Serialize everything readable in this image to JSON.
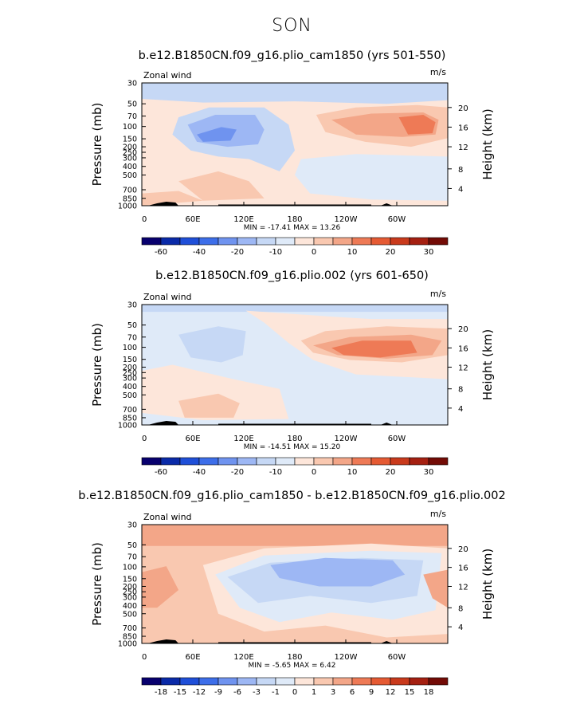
{
  "figure": {
    "title": "SON"
  },
  "chart_data": [
    {
      "type": "heatmap",
      "title": "b.e12.B1850CN.f09_g16.plio_cam1850 (yrs 501-550)",
      "variable_label": "Zonal wind",
      "units_label": "m/s",
      "ylabel": "Pressure (mb)",
      "ylabel_right": "Height (km)",
      "x_ticks": [
        "0",
        "60E",
        "120E",
        "180",
        "120W",
        "60W"
      ],
      "y_ticks": [
        "30",
        "50",
        "70",
        "100",
        "150",
        "200",
        "250",
        "300",
        "400",
        "500",
        "700",
        "850",
        "1000"
      ],
      "height_ticks": [
        "20",
        "16",
        "12",
        "8",
        "4"
      ],
      "min_max": "MIN = -17.41  MAX =  13.26",
      "colorbar_labels": [
        "-60",
        "-40",
        "-20",
        "-10",
        "0",
        "10",
        "20",
        "30"
      ],
      "min_value": -17.41,
      "max_value": 13.26
    },
    {
      "type": "heatmap",
      "title": "b.e12.B1850CN.f09_g16.plio.002 (yrs 601-650)",
      "variable_label": "Zonal wind",
      "units_label": "m/s",
      "ylabel": "Pressure (mb)",
      "ylabel_right": "Height (km)",
      "x_ticks": [
        "0",
        "60E",
        "120E",
        "180",
        "120W",
        "60W"
      ],
      "y_ticks": [
        "30",
        "50",
        "70",
        "100",
        "150",
        "200",
        "250",
        "300",
        "400",
        "500",
        "700",
        "850",
        "1000"
      ],
      "height_ticks": [
        "20",
        "16",
        "12",
        "8",
        "4"
      ],
      "min_max": "MIN = -14.51  MAX =  15.20",
      "colorbar_labels": [
        "-60",
        "-40",
        "-20",
        "-10",
        "0",
        "10",
        "20",
        "30"
      ],
      "min_value": -14.51,
      "max_value": 15.2
    },
    {
      "type": "heatmap",
      "title": "b.e12.B1850CN.f09_g16.plio_cam1850 - b.e12.B1850CN.f09_g16.plio.002",
      "variable_label": "Zonal wind",
      "units_label": "m/s",
      "ylabel": "Pressure (mb)",
      "ylabel_right": "Height (km)",
      "x_ticks": [
        "0",
        "60E",
        "120E",
        "180",
        "120W",
        "60W"
      ],
      "y_ticks": [
        "30",
        "50",
        "70",
        "100",
        "150",
        "200",
        "250",
        "300",
        "400",
        "500",
        "700",
        "850",
        "1000"
      ],
      "height_ticks": [
        "20",
        "16",
        "12",
        "8",
        "4"
      ],
      "min_max": "MIN =  -5.65  MAX =   6.42",
      "colorbar_labels": [
        "-18",
        "-15",
        "-12",
        "-9",
        "-6",
        "-3",
        "-1",
        "0",
        "1",
        "3",
        "6",
        "9",
        "12",
        "15",
        "18"
      ],
      "min_value": -5.65,
      "max_value": 6.42
    }
  ],
  "colors": {
    "scale": [
      "#08006e",
      "#0a2aa8",
      "#1f4fd8",
      "#3d6ee9",
      "#6f93ef",
      "#9db7f4",
      "#c6d8f5",
      "#dfeaf8",
      "#fde6da",
      "#f9c8b0",
      "#f3a688",
      "#ee7a56",
      "#e55a33",
      "#c93a1c",
      "#a52011",
      "#730b06"
    ]
  }
}
